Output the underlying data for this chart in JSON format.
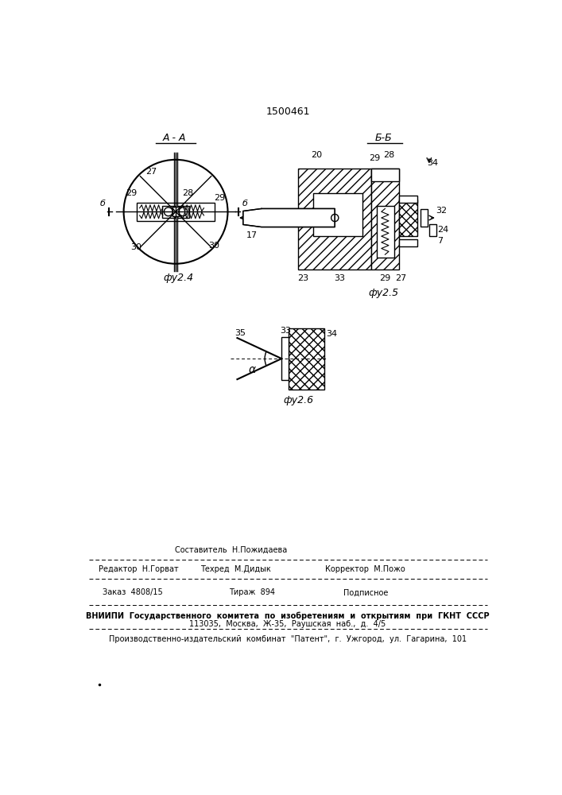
{
  "patent_number": "1500461",
  "bg_color": "#ffffff",
  "fig4_caption": "фу2.4",
  "fig5_caption": "фу2.5",
  "fig6_caption": "фу2.6",
  "section_AA": "A - A",
  "section_BB": "Б-Б",
  "footer_editor": "Редактор  Н.Горват",
  "footer_compiler": "Составитель  Н.Пожидаева",
  "footer_techred": "Техред  М.Дидык",
  "footer_corrector": "Корректор  М.Пожо",
  "footer_order": "Заказ  4808/15",
  "footer_tirazh": "Тираж  894",
  "footer_podp": "Подписное",
  "footer_vniip1": "ВНИИПИ  Государственного  комитета  по  изобретениям  и  открытиям  при  ГКНТ  СССР",
  "footer_vniip2": "113035,  Москва,  Ж-35,  Раушская  наб.,  д.  4/5",
  "footer_kombinat": "Производственно-издательский  комбинат  \"Патент\",  г.  Ужгород,  ул.  Гагарина,  101"
}
